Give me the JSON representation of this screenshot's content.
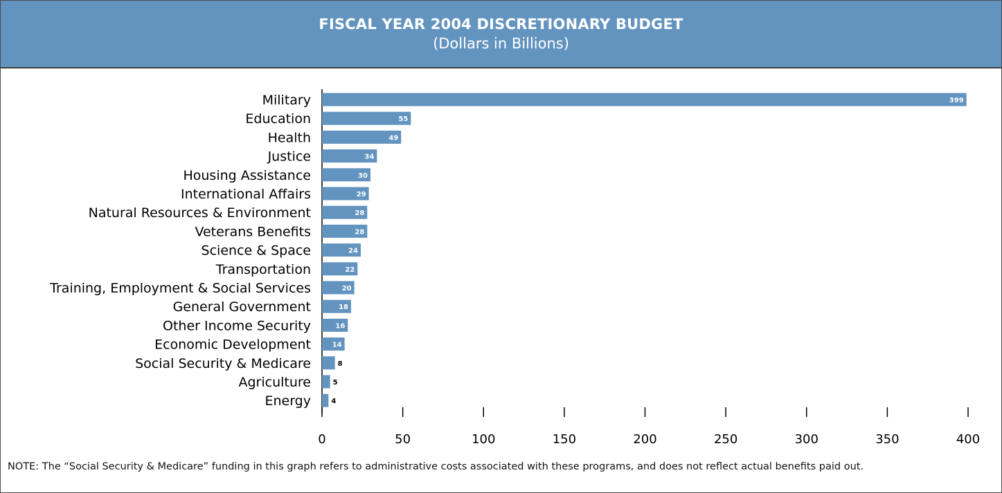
{
  "header": {
    "title": "FISCAL YEAR 2004 DISCRETIONARY BUDGET",
    "subtitle": "(Dollars in Billions)"
  },
  "note": "NOTE: The “Social Security & Medicare” funding in this graph refers to administrative costs associated with these programs, and does not reflect actual benefits paid out.",
  "colors": {
    "header_bg": "#6394c0",
    "bar": "#6394c0",
    "bar_label_inside": "#ffffff",
    "bar_label_outside": "#000000"
  },
  "chart_data": {
    "type": "bar",
    "orientation": "horizontal",
    "title": "FISCAL YEAR 2004 DISCRETIONARY BUDGET",
    "subtitle": "(Dollars in Billions)",
    "xlabel": "",
    "ylabel": "",
    "categories": [
      "Military",
      "Education",
      "Health",
      "Justice",
      "Housing Assistance",
      "International Affairs",
      "Natural Resources & Environment",
      "Veterans Benefits",
      "Science & Space",
      "Transportation",
      "Training, Employment & Social Services",
      "General Government",
      "Other Income Security",
      "Economic Development",
      "Social Security & Medicare",
      "Agriculture",
      "Energy"
    ],
    "values": [
      399,
      55,
      49,
      34,
      30,
      29,
      28,
      28,
      24,
      22,
      20,
      18,
      16,
      14,
      8,
      5,
      4
    ],
    "xlim": [
      0,
      400
    ],
    "xticks": [
      0,
      50,
      100,
      150,
      200,
      250,
      300,
      350,
      400
    ],
    "grid": false,
    "legend": "none"
  }
}
